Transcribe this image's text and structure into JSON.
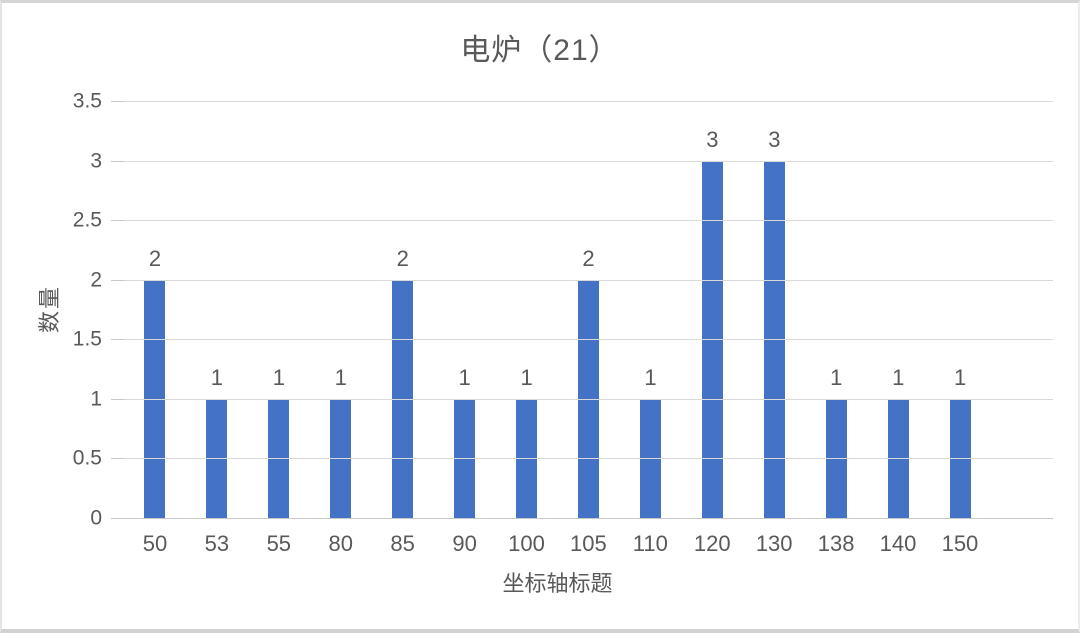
{
  "chart_data": {
    "type": "bar",
    "title": "电炉（21）",
    "xlabel": "坐标轴标题",
    "ylabel": "数量",
    "categories": [
      "50",
      "53",
      "55",
      "80",
      "85",
      "90",
      "100",
      "105",
      "110",
      "120",
      "130",
      "138",
      "140",
      "150"
    ],
    "values": [
      2,
      1,
      1,
      1,
      2,
      1,
      1,
      2,
      1,
      3,
      3,
      1,
      1,
      1
    ],
    "total_count": 21,
    "y_tick_labels": [
      "0",
      "0.5",
      "1",
      "1.5",
      "2",
      "2.5",
      "3",
      "3.5"
    ],
    "ylim": [
      0,
      3.5
    ],
    "grid": "horizontal",
    "legend_position": "none",
    "data_labels_shown": true,
    "extra_empty_slot_right": true,
    "colors": {
      "bar": "#4472C4",
      "gridline": "#d9d9d9",
      "axis_line": "#c8c8c8",
      "text": "#595959",
      "background": "#ffffff",
      "card_border": "#d5d5d5"
    }
  }
}
